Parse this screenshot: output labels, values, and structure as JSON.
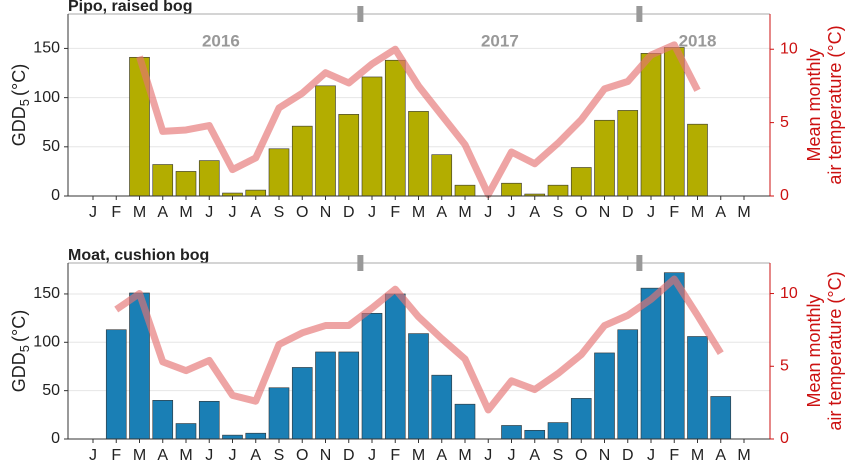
{
  "chart_data": [
    {
      "type": "bar",
      "title": "Pipo, raised bog",
      "ylabel": {
        "text": "GDD",
        "subscript": "5",
        "suffix": "(°C)"
      },
      "y2label": [
        "Mean monthly",
        "air temperature (°C)"
      ],
      "annotations": [
        "2016",
        "2017",
        "2018"
      ],
      "categories": [
        "J",
        "F",
        "M",
        "A",
        "M",
        "J",
        "J",
        "A",
        "S",
        "O",
        "N",
        "D",
        "J",
        "F",
        "M",
        "A",
        "M",
        "J",
        "J",
        "A",
        "S",
        "O",
        "N",
        "D",
        "J",
        "F",
        "M",
        "A",
        "M"
      ],
      "series": [
        {
          "color": "#b3ad00",
          "values": [
            0,
            0,
            141,
            32,
            25,
            36,
            3,
            6,
            48,
            71,
            112,
            83,
            121,
            138,
            86,
            42,
            11,
            0,
            13,
            2,
            11,
            29,
            77,
            87,
            145,
            151,
            73,
            0,
            0
          ]
        },
        {
          "type": "line",
          "axis": "y2",
          "color": "#e57373",
          "values": [
            null,
            null,
            9.5,
            4.4,
            4.5,
            4.8,
            1.8,
            2.6,
            6.0,
            7.0,
            8.4,
            7.7,
            9.0,
            10.0,
            7.5,
            5.5,
            3.5,
            0.1,
            3.0,
            2.2,
            3.6,
            5.2,
            7.3,
            7.8,
            9.6,
            10.3,
            7.2,
            null,
            null
          ]
        }
      ],
      "ylim": [
        0,
        185
      ],
      "yticks": [
        0,
        50,
        100,
        150
      ],
      "y2lim": [
        0,
        12.4
      ],
      "y2ticks": [
        0,
        5,
        10
      ],
      "grid": true
    },
    {
      "type": "bar",
      "title": "Moat, cushion bog",
      "ylabel": {
        "text": "GDD",
        "subscript": "5",
        "suffix": "(°C)"
      },
      "y2label": [
        "Mean monthly",
        "air temperature (°C)"
      ],
      "categories": [
        "J",
        "F",
        "M",
        "A",
        "M",
        "J",
        "J",
        "A",
        "S",
        "O",
        "N",
        "D",
        "J",
        "F",
        "M",
        "A",
        "M",
        "J",
        "J",
        "A",
        "S",
        "O",
        "N",
        "D",
        "J",
        "F",
        "M",
        "A",
        "M"
      ],
      "series": [
        {
          "color": "#1a7fb5",
          "values": [
            0,
            113,
            151,
            40,
            16,
            39,
            4,
            6,
            53,
            74,
            90,
            90,
            130,
            150,
            109,
            66,
            36,
            0,
            14,
            9,
            17,
            42,
            89,
            113,
            156,
            172,
            106,
            44,
            0
          ]
        },
        {
          "type": "line",
          "axis": "y2",
          "color": "#e57373",
          "values": [
            null,
            8.9,
            10.0,
            5.3,
            4.7,
            5.4,
            3.0,
            2.6,
            6.5,
            7.3,
            7.8,
            7.8,
            9.0,
            10.3,
            8.4,
            6.9,
            5.5,
            2.0,
            4.0,
            3.4,
            4.5,
            5.8,
            7.8,
            8.5,
            9.6,
            11.0,
            8.5,
            5.9,
            null
          ]
        }
      ],
      "ylim": [
        0,
        182
      ],
      "yticks": [
        0,
        50,
        100,
        150
      ],
      "y2lim": [
        0,
        12.1
      ],
      "y2ticks": [
        0,
        5,
        10
      ],
      "grid": true
    }
  ]
}
